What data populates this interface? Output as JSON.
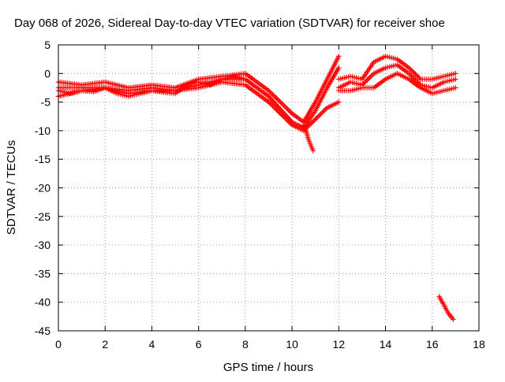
{
  "chart_data": {
    "type": "scatter",
    "title": "Day 068 of 2026, Sidereal Day-to-day VTEC variation (SDTVAR) for receiver shoe",
    "xlabel": "GPS time / hours",
    "ylabel": "SDTVAR / TECUs",
    "xlim": [
      0,
      18
    ],
    "ylim": [
      -45,
      5
    ],
    "xticks": [
      0,
      2,
      4,
      6,
      8,
      10,
      12,
      14,
      16,
      18
    ],
    "yticks": [
      5,
      0,
      -5,
      -10,
      -15,
      -20,
      -25,
      -30,
      -35,
      -40,
      -45
    ],
    "grid": true,
    "marker": "+",
    "legend": "none",
    "series_color": "#ff0000",
    "series": [
      {
        "name": "track-1",
        "x": [
          0,
          1,
          2,
          3,
          4,
          5,
          6,
          7,
          8,
          9,
          10,
          10.5,
          11,
          11.5,
          12
        ],
        "y": [
          -1.5,
          -2,
          -1.5,
          -2.5,
          -2,
          -2.5,
          -1,
          -0.5,
          0,
          -3,
          -7,
          -8.5,
          -5,
          -1,
          3
        ]
      },
      {
        "name": "track-2",
        "x": [
          0,
          1,
          2,
          3,
          4,
          5,
          6,
          7,
          8,
          9,
          10,
          10.5,
          11,
          11.5,
          12
        ],
        "y": [
          -2.5,
          -2.5,
          -2.5,
          -3,
          -2.5,
          -3,
          -2,
          -1,
          -1,
          -4,
          -8.5,
          -9.5,
          -6.5,
          -2.5,
          1
        ]
      },
      {
        "name": "track-3",
        "x": [
          0,
          1,
          2,
          3,
          4,
          5,
          6,
          7,
          8,
          9,
          9.5,
          10,
          10.5,
          11,
          11.5,
          12
        ],
        "y": [
          -4,
          -3,
          -2.5,
          -3.5,
          -3,
          -3,
          -2.5,
          -1.5,
          -2,
          -5,
          -7,
          -9,
          -10,
          -8,
          -6,
          -5
        ]
      },
      {
        "name": "track-4",
        "x": [
          0,
          0.5,
          1,
          1.5,
          2,
          2.5,
          3,
          3.5,
          4,
          4.5,
          5,
          5.5,
          6,
          6.5,
          7,
          7.5,
          8
        ],
        "y": [
          -3,
          -3.5,
          -3,
          -3.2,
          -2.5,
          -3.5,
          -4,
          -3.5,
          -3,
          -3.3,
          -3.5,
          -2,
          -1.5,
          -2,
          -1,
          -0.5,
          -1
        ]
      },
      {
        "name": "track-5",
        "x": [
          10.5,
          10.6,
          10.7,
          10.8,
          10.9
        ],
        "y": [
          -9,
          -10,
          -11.5,
          -12.5,
          -13.5
        ]
      },
      {
        "name": "track-6",
        "x": [
          12,
          12.5,
          13,
          13.5,
          14,
          14.5,
          15,
          15.5,
          16,
          16.5,
          17
        ],
        "y": [
          -1,
          -0.5,
          -1,
          2,
          3,
          2.5,
          1,
          -1,
          -1,
          -0.5,
          0
        ]
      },
      {
        "name": "track-7",
        "x": [
          12,
          12.5,
          13,
          13.5,
          14,
          14.5,
          15,
          15.5,
          16,
          16.5,
          17
        ],
        "y": [
          -2.5,
          -1.5,
          -2,
          0,
          1,
          1.5,
          0,
          -2,
          -2.5,
          -1.5,
          -1
        ]
      },
      {
        "name": "track-8",
        "x": [
          12,
          12.5,
          13,
          13.5,
          14,
          14.5,
          15,
          15.5,
          16,
          16.5,
          17
        ],
        "y": [
          -3,
          -3,
          -2.5,
          -2.5,
          -1,
          0,
          -1,
          -2.5,
          -3.5,
          -3,
          -2.5
        ]
      },
      {
        "name": "track-9",
        "x": [
          16.3,
          16.5,
          16.7,
          16.9
        ],
        "y": [
          -39,
          -40.5,
          -42,
          -43
        ]
      }
    ]
  }
}
